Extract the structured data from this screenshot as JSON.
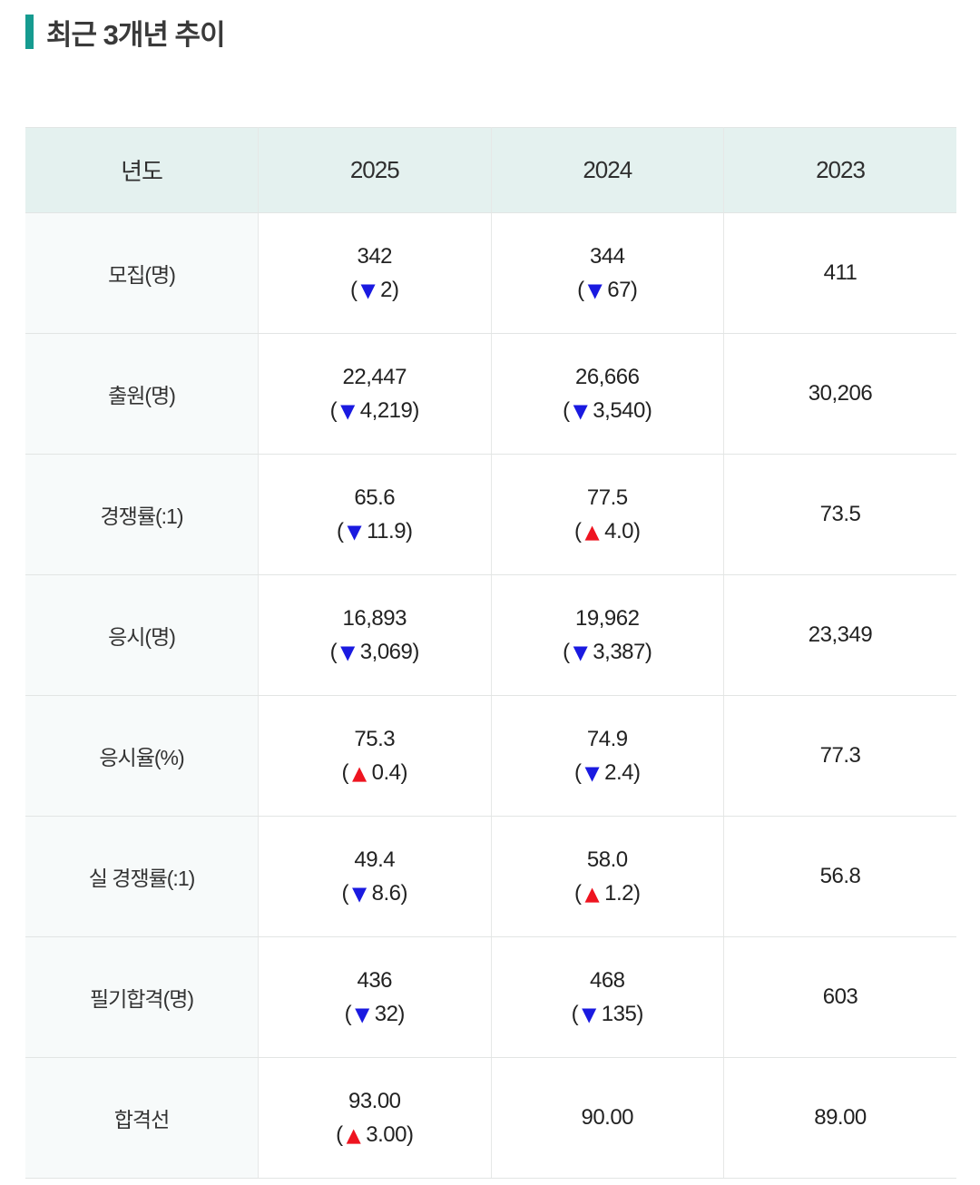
{
  "page": {
    "title": "최근 3개년 추이"
  },
  "colors": {
    "accent": "#169b90",
    "header_bg": "#e4f1ef",
    "label_bg": "#f7fafa",
    "border": "#e2e5e4",
    "up_triangle": "#ee1420",
    "down_triangle": "#1a1ae0",
    "text": "#222222"
  },
  "glyphs": {
    "up": "▲",
    "down": "▼",
    "open_paren": "(",
    "close_paren": ")"
  },
  "table": {
    "columns": [
      "년도",
      "2025",
      "2024",
      "2023"
    ],
    "rows": [
      {
        "label": "모집(명)",
        "cells": [
          {
            "value": "342",
            "dir": "down",
            "delta": "2"
          },
          {
            "value": "344",
            "dir": "down",
            "delta": "67"
          },
          {
            "value": "411"
          }
        ]
      },
      {
        "label": "출원(명)",
        "cells": [
          {
            "value": "22,447",
            "dir": "down",
            "delta": "4,219"
          },
          {
            "value": "26,666",
            "dir": "down",
            "delta": "3,540"
          },
          {
            "value": "30,206"
          }
        ]
      },
      {
        "label": "경쟁률(:1)",
        "cells": [
          {
            "value": "65.6",
            "dir": "down",
            "delta": "11.9"
          },
          {
            "value": "77.5",
            "dir": "up",
            "delta": "4.0"
          },
          {
            "value": "73.5"
          }
        ]
      },
      {
        "label": "응시(명)",
        "cells": [
          {
            "value": "16,893",
            "dir": "down",
            "delta": "3,069"
          },
          {
            "value": "19,962",
            "dir": "down",
            "delta": "3,387"
          },
          {
            "value": "23,349"
          }
        ]
      },
      {
        "label": "응시율(%)",
        "cells": [
          {
            "value": "75.3",
            "dir": "up",
            "delta": "0.4"
          },
          {
            "value": "74.9",
            "dir": "down",
            "delta": "2.4"
          },
          {
            "value": "77.3"
          }
        ]
      },
      {
        "label": "실 경쟁률(:1)",
        "cells": [
          {
            "value": "49.4",
            "dir": "down",
            "delta": "8.6"
          },
          {
            "value": "58.0",
            "dir": "up",
            "delta": "1.2"
          },
          {
            "value": "56.8"
          }
        ]
      },
      {
        "label": "필기합격(명)",
        "cells": [
          {
            "value": "436",
            "dir": "down",
            "delta": "32"
          },
          {
            "value": "468",
            "dir": "down",
            "delta": "135"
          },
          {
            "value": "603"
          }
        ]
      },
      {
        "label": "합격선",
        "cells": [
          {
            "value": "93.00",
            "dir": "up",
            "delta": "3.00"
          },
          {
            "value": "90.00"
          },
          {
            "value": "89.00"
          }
        ]
      }
    ]
  },
  "chart_data": {
    "type": "table",
    "title": "최근 3개년 추이",
    "columns": [
      "년도",
      "2025",
      "2024",
      "2023"
    ],
    "rows": [
      {
        "label": "모집(명)",
        "values": [
          342,
          344,
          411
        ],
        "changes": [
          -2,
          -67,
          null
        ]
      },
      {
        "label": "출원(명)",
        "values": [
          22447,
          26666,
          30206
        ],
        "changes": [
          -4219,
          -3540,
          null
        ]
      },
      {
        "label": "경쟁률(:1)",
        "values": [
          65.6,
          77.5,
          73.5
        ],
        "changes": [
          -11.9,
          4.0,
          null
        ]
      },
      {
        "label": "응시(명)",
        "values": [
          16893,
          19962,
          23349
        ],
        "changes": [
          -3069,
          -3387,
          null
        ]
      },
      {
        "label": "응시율(%)",
        "values": [
          75.3,
          74.9,
          77.3
        ],
        "changes": [
          0.4,
          -2.4,
          null
        ]
      },
      {
        "label": "실 경쟁률(:1)",
        "values": [
          49.4,
          58.0,
          56.8
        ],
        "changes": [
          -8.6,
          1.2,
          null
        ]
      },
      {
        "label": "필기합격(명)",
        "values": [
          436,
          468,
          603
        ],
        "changes": [
          -32,
          -135,
          null
        ]
      },
      {
        "label": "합격선",
        "values": [
          93.0,
          90.0,
          89.0
        ],
        "changes": [
          3.0,
          null,
          null
        ]
      }
    ]
  }
}
